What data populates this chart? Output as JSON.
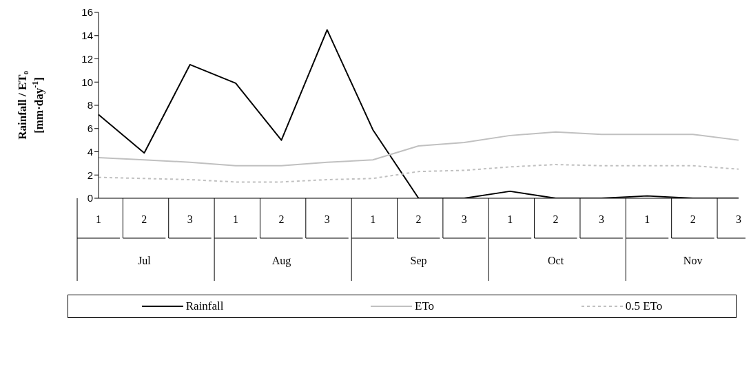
{
  "chart_data": {
    "type": "line",
    "ylabel": "Rainfall / ET₀\n[mm·day$^{-1}$]",
    "categories": [
      "1",
      "2",
      "3",
      "1",
      "2",
      "3",
      "1",
      "2",
      "3",
      "1",
      "2",
      "3",
      "1",
      "2",
      "3"
    ],
    "annotations": [
      "Jul",
      "Aug",
      "Sep",
      "Oct",
      "Nov"
    ],
    "series": [
      {
        "name": "Rainfall",
        "color": "#000000",
        "line_style": "solid",
        "values": [
          7.2,
          3.9,
          11.5,
          9.9,
          5.0,
          14.5,
          5.9,
          0,
          0,
          0.6,
          0,
          0,
          0.2,
          0,
          0
        ]
      },
      {
        "name": "ETo",
        "color": "#c0c0c0",
        "line_style": "solid",
        "values": [
          3.5,
          3.3,
          3.1,
          2.8,
          2.8,
          3.1,
          3.3,
          4.5,
          4.8,
          5.4,
          5.7,
          5.5,
          5.5,
          5.5,
          5.0
        ]
      },
      {
        "name": "0.5 ETo",
        "color": "#c0c0c0",
        "line_style": "dashed",
        "values": [
          1.8,
          1.7,
          1.6,
          1.4,
          1.4,
          1.6,
          1.7,
          2.3,
          2.4,
          2.7,
          2.9,
          2.8,
          2.8,
          2.8,
          2.5
        ]
      }
    ],
    "ylim": [
      0,
      16
    ],
    "yticks": [
      0,
      2,
      4,
      6,
      8,
      10,
      12,
      14,
      16
    ],
    "grid": false,
    "legend": "bottom",
    "marker": "none"
  }
}
